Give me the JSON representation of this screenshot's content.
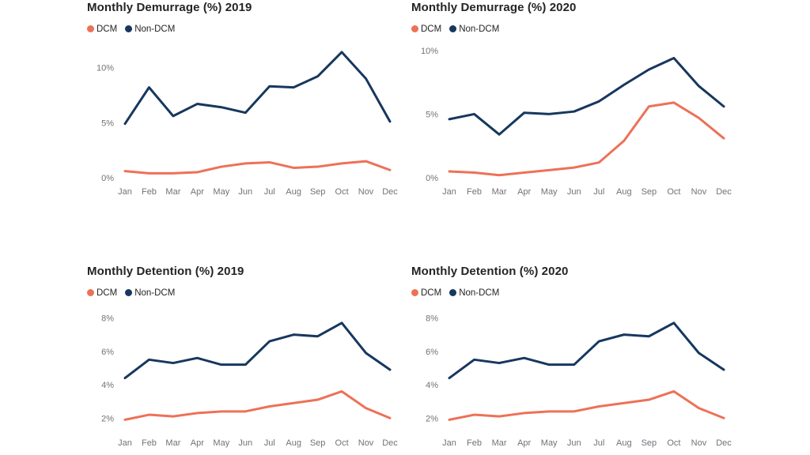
{
  "page": {
    "background": "#FFFFFF"
  },
  "colors": {
    "dcm": "#ED7158",
    "non_dcm": "#17375E",
    "title_text": "#252423",
    "axis_label": "#757078"
  },
  "chart_data": [
    {
      "id": "demurrage-2019",
      "type": "line",
      "title": "Monthly Demurrage (%) 2019",
      "categories": [
        "Jan",
        "Feb",
        "Mar",
        "Apr",
        "May",
        "Jun",
        "Jul",
        "Aug",
        "Sep",
        "Oct",
        "Nov",
        "Dec"
      ],
      "series": [
        {
          "name": "DCM",
          "color": "#ED7158",
          "values": [
            0.6,
            0.4,
            0.4,
            0.5,
            1.0,
            1.3,
            1.4,
            0.9,
            1.0,
            1.3,
            1.5,
            0.7
          ]
        },
        {
          "name": "Non-DCM",
          "color": "#17375E",
          "values": [
            4.9,
            8.2,
            5.6,
            6.7,
            6.4,
            5.9,
            8.3,
            8.2,
            9.2,
            11.4,
            9.0,
            5.1
          ]
        }
      ],
      "xlabel": "",
      "ylabel": "",
      "ylim": [
        0,
        11.9
      ],
      "yticks": [
        {
          "v": 0,
          "label": "0%"
        },
        {
          "v": 5,
          "label": "5%"
        },
        {
          "v": 10,
          "label": "10%"
        }
      ],
      "grid": false,
      "legend_position": "top-left"
    },
    {
      "id": "demurrage-2020",
      "type": "line",
      "title": "Monthly Demurrage (%) 2020",
      "categories": [
        "Jan",
        "Feb",
        "Mar",
        "Apr",
        "May",
        "Jun",
        "Jul",
        "Aug",
        "Sep",
        "Oct",
        "Nov",
        "Dec"
      ],
      "series": [
        {
          "name": "DCM",
          "color": "#ED7158",
          "values": [
            0.5,
            0.4,
            0.2,
            0.4,
            0.6,
            0.8,
            1.2,
            2.9,
            5.6,
            5.9,
            4.7,
            3.1
          ]
        },
        {
          "name": "Non-DCM",
          "color": "#17375E",
          "values": [
            4.6,
            5.0,
            3.4,
            5.1,
            5.0,
            5.2,
            6.0,
            7.3,
            8.5,
            9.4,
            7.2,
            5.6
          ]
        }
      ],
      "xlabel": "",
      "ylabel": "",
      "ylim": [
        0,
        10.3
      ],
      "yticks": [
        {
          "v": 0,
          "label": "0%"
        },
        {
          "v": 5,
          "label": "5%"
        },
        {
          "v": 10,
          "label": "10%"
        }
      ],
      "grid": false,
      "legend_position": "top-left"
    },
    {
      "id": "detention-2019",
      "type": "line",
      "title": "Monthly Detention (%) 2019",
      "categories": [
        "Jan",
        "Feb",
        "Mar",
        "Apr",
        "May",
        "Jun",
        "Jul",
        "Aug",
        "Sep",
        "Oct",
        "Nov",
        "Dec"
      ],
      "series": [
        {
          "name": "DCM",
          "color": "#ED7158",
          "values": [
            1.9,
            2.2,
            2.1,
            2.3,
            2.4,
            2.4,
            2.7,
            2.9,
            3.1,
            3.6,
            2.6,
            2.0
          ]
        },
        {
          "name": "Non-DCM",
          "color": "#17375E",
          "values": [
            4.4,
            5.5,
            5.3,
            5.6,
            5.2,
            5.2,
            6.6,
            7.0,
            6.9,
            7.7,
            5.9,
            4.9
          ]
        }
      ],
      "xlabel": "",
      "ylabel": "",
      "ylim": [
        1.35,
        8.45
      ],
      "yticks": [
        {
          "v": 2,
          "label": "2%"
        },
        {
          "v": 4,
          "label": "4%"
        },
        {
          "v": 6,
          "label": "6%"
        },
        {
          "v": 8,
          "label": "8%"
        }
      ],
      "grid": false,
      "legend_position": "top-left"
    },
    {
      "id": "detention-2020",
      "type": "line",
      "title": "Monthly Detention (%) 2020",
      "categories": [
        "Jan",
        "Feb",
        "Mar",
        "Apr",
        "May",
        "Jun",
        "Jul",
        "Aug",
        "Sep",
        "Oct",
        "Nov",
        "Dec"
      ],
      "series": [
        {
          "name": "DCM",
          "color": "#ED7158",
          "values": [
            1.9,
            2.2,
            2.1,
            2.3,
            2.4,
            2.4,
            2.7,
            2.9,
            3.1,
            3.6,
            2.6,
            2.0
          ]
        },
        {
          "name": "Non-DCM",
          "color": "#17375E",
          "values": [
            4.4,
            5.5,
            5.3,
            5.6,
            5.2,
            5.2,
            6.6,
            7.0,
            6.9,
            7.7,
            5.9,
            4.9
          ]
        }
      ],
      "xlabel": "",
      "ylabel": "",
      "ylim": [
        1.35,
        8.45
      ],
      "yticks": [
        {
          "v": 2,
          "label": "2%"
        },
        {
          "v": 4,
          "label": "4%"
        },
        {
          "v": 6,
          "label": "6%"
        },
        {
          "v": 8,
          "label": "8%"
        }
      ],
      "grid": false,
      "legend_position": "top-left"
    }
  ]
}
